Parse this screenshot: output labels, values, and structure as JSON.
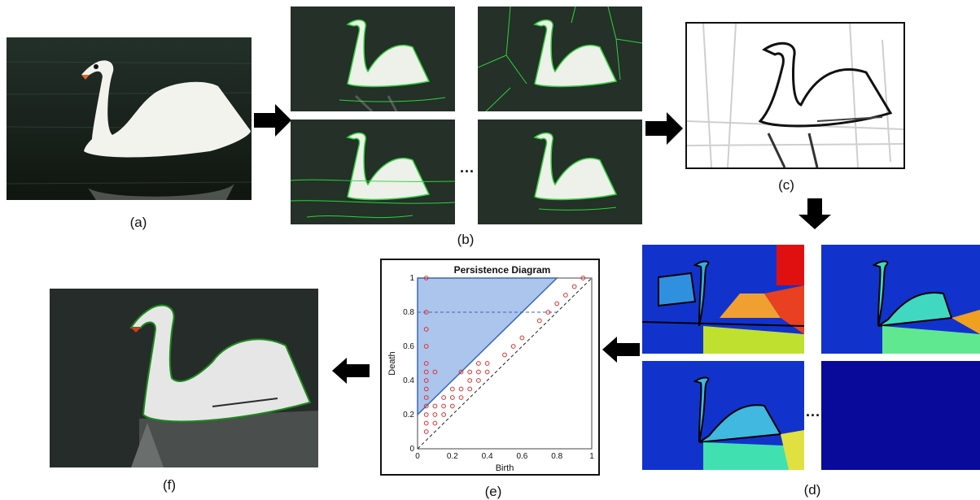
{
  "labels": {
    "a": "(a)",
    "b": "(b)",
    "c": "(c)",
    "d": "(d)",
    "e": "(e)",
    "f": "(f)"
  },
  "ellipsis": "...",
  "persistence": {
    "title": "Persistence Diagram",
    "xlabel": "Birth",
    "ylabel": "Death",
    "x_ticks": [
      "0",
      "0.2",
      "0.4",
      "0.6",
      "0.8",
      "1"
    ],
    "y_ticks": [
      "0",
      "0.2",
      "0.4",
      "0.6",
      "0.8",
      "1"
    ]
  },
  "chart_data": {
    "type": "scatter",
    "title": "Persistence Diagram",
    "xlabel": "Birth",
    "ylabel": "Death",
    "xlim": [
      0,
      1
    ],
    "ylim": [
      0,
      1
    ],
    "points": [
      [
        0.05,
        0.1
      ],
      [
        0.05,
        0.15
      ],
      [
        0.05,
        0.2
      ],
      [
        0.05,
        0.25
      ],
      [
        0.05,
        0.3
      ],
      [
        0.05,
        0.35
      ],
      [
        0.05,
        0.4
      ],
      [
        0.05,
        0.45
      ],
      [
        0.05,
        0.5
      ],
      [
        0.05,
        0.6
      ],
      [
        0.05,
        0.7
      ],
      [
        0.05,
        0.8
      ],
      [
        0.05,
        1.0
      ],
      [
        0.1,
        0.15
      ],
      [
        0.1,
        0.2
      ],
      [
        0.1,
        0.25
      ],
      [
        0.1,
        0.45
      ],
      [
        0.15,
        0.2
      ],
      [
        0.15,
        0.25
      ],
      [
        0.15,
        0.3
      ],
      [
        0.2,
        0.25
      ],
      [
        0.2,
        0.3
      ],
      [
        0.2,
        0.35
      ],
      [
        0.25,
        0.3
      ],
      [
        0.25,
        0.35
      ],
      [
        0.25,
        0.45
      ],
      [
        0.3,
        0.35
      ],
      [
        0.3,
        0.4
      ],
      [
        0.3,
        0.45
      ],
      [
        0.35,
        0.4
      ],
      [
        0.35,
        0.45
      ],
      [
        0.35,
        0.5
      ],
      [
        0.4,
        0.45
      ],
      [
        0.4,
        0.5
      ],
      [
        0.5,
        0.55
      ],
      [
        0.55,
        0.6
      ],
      [
        0.6,
        0.65
      ],
      [
        0.7,
        0.75
      ],
      [
        0.75,
        0.8
      ],
      [
        0.8,
        0.85
      ],
      [
        0.85,
        0.9
      ],
      [
        0.9,
        0.95
      ],
      [
        0.95,
        1.0
      ]
    ],
    "selection_region": {
      "apex_birth": 0.8,
      "min_death": 0.2
    },
    "threshold_line_y": 0.8
  },
  "colors": {
    "arrow": "#000000",
    "edge_green": "#2fd13a",
    "point": "#e03030",
    "region_fill": "#8fb1e6",
    "region_stroke": "#3a67b8",
    "water_dark": "#1e2a24"
  }
}
